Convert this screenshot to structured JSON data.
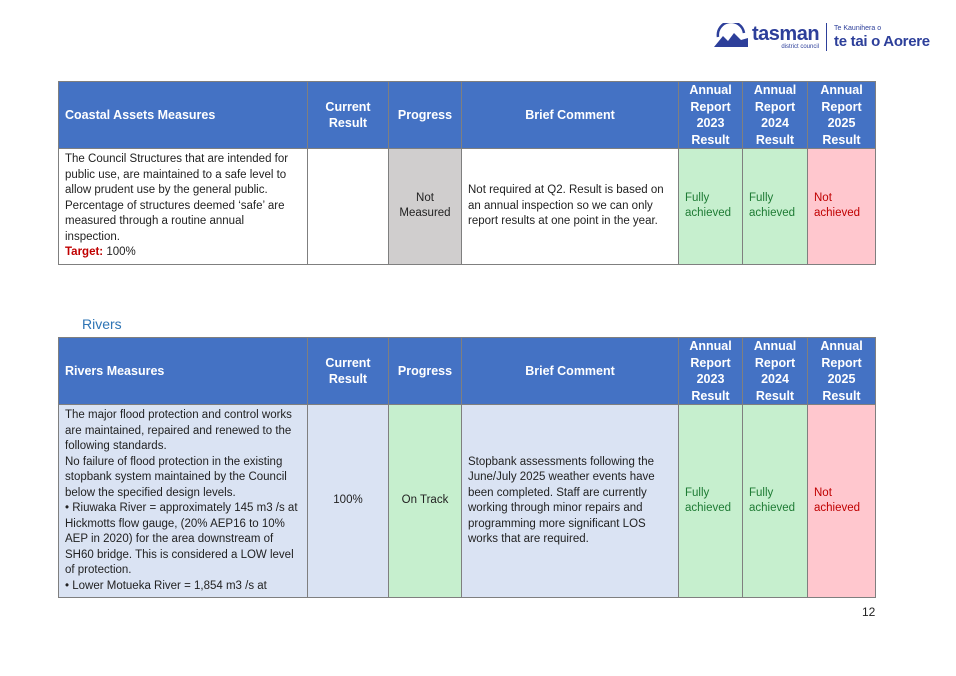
{
  "logo": {
    "name": "tasman",
    "sub": "district council",
    "maori_small": "Te Kaunihera o",
    "maori": "te tai o Aorere"
  },
  "columns": {
    "current": "Current Result",
    "progress": "Progress",
    "comment": "Brief Comment",
    "ar2023": "Annual Report 2023 Result",
    "ar2024": "Annual Report 2024 Result",
    "ar2025": "Annual Report 2025 Result"
  },
  "coastal": {
    "header": "Coastal Assets Measures",
    "row": {
      "measure": "The Council Structures that are intended for public use, are maintained to a safe level to allow prudent use by the general public. Percentage of structures deemed ‘safe’ are measured through a routine annual inspection.",
      "target_label": "Target:",
      "target_value": " 100%",
      "current": "",
      "progress": "Not Measured",
      "comment": "Not required at Q2. Result is based on an annual inspection so we can only report results at one point in the year.",
      "ar2023": "Fully achieved",
      "ar2024": "Fully achieved",
      "ar2025": "Not achieved"
    }
  },
  "rivers": {
    "section_title": "Rivers",
    "header": "Rivers Measures",
    "row": {
      "measure_lines": [
        "The major flood protection and control works are maintained, repaired and renewed to the following standards.",
        "No failure of flood protection in the existing stopbank system maintained by the Council below the specified design levels.",
        "• Riuwaka River = approximately 145 m3 /s at Hickmotts flow gauge, (20% AEP16 to 10% AEP in 2020) for the area downstream of SH60 bridge. This is considered a LOW level of protection.",
        "• Lower Motueka River = 1,854 m3 /s at"
      ],
      "current": "100%",
      "progress": "On Track",
      "comment": "Stopbank assessments following the June/July 2025 weather events have been completed. Staff are currently working through minor repairs and programming more significant LOS works that are required.",
      "ar2023": "Fully achieved",
      "ar2024": "Fully achieved",
      "ar2025": "Not achieved"
    }
  },
  "page_number": "12"
}
